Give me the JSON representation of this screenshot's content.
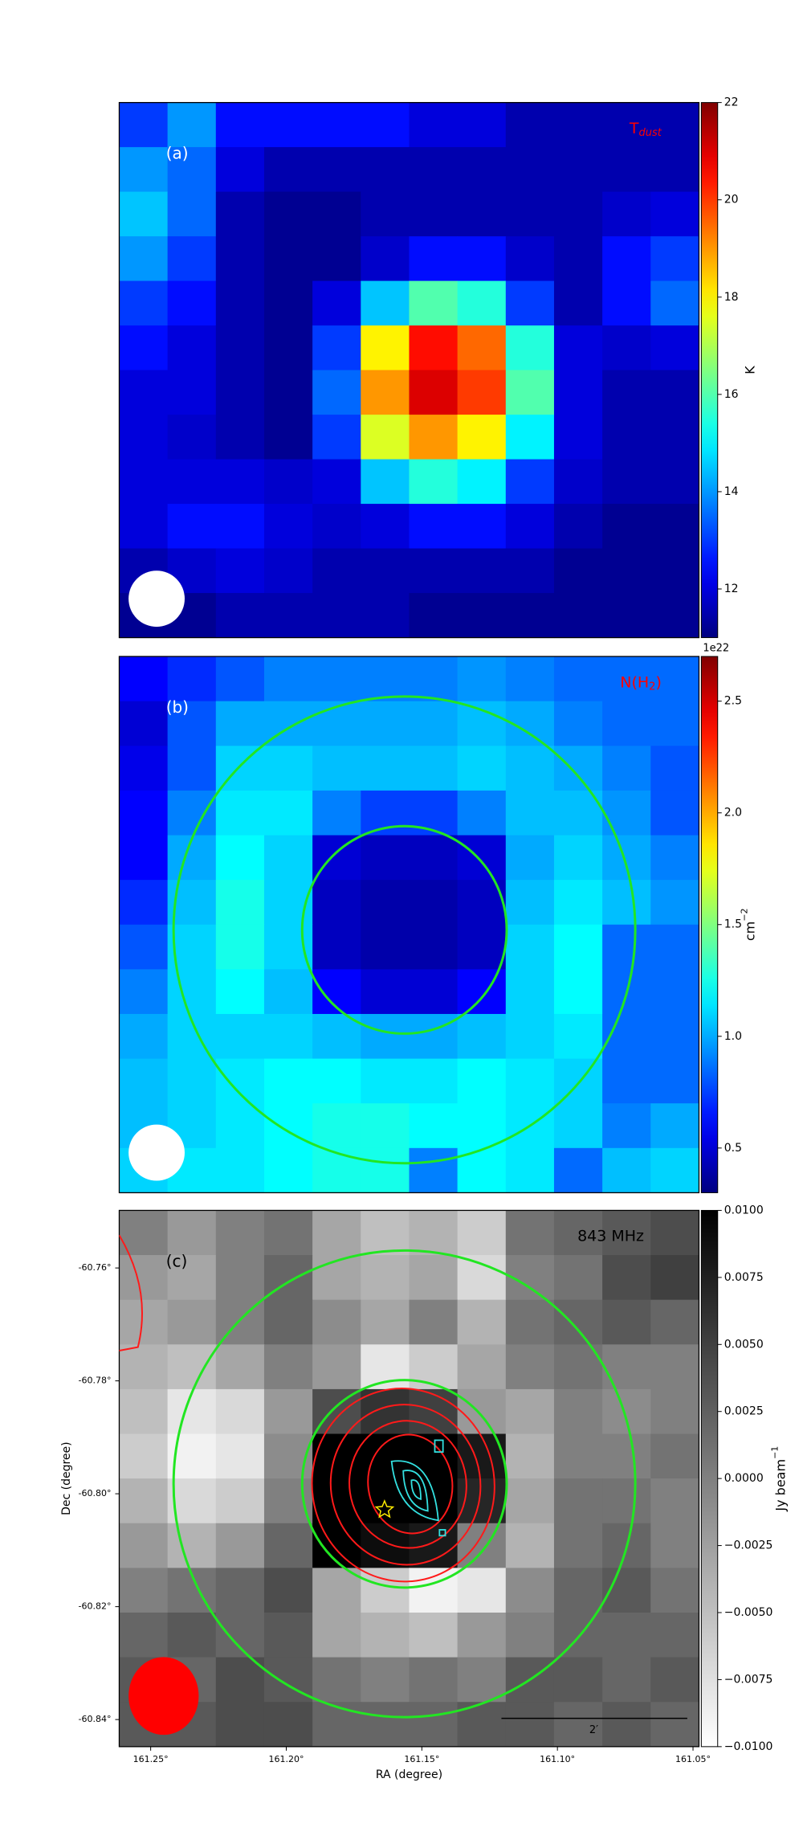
{
  "chart_data": [
    {
      "type": "heatmap",
      "panel_label": "(a)",
      "map_label": "T",
      "map_label_sub": "dust",
      "map_label_color": "#ff0000",
      "colormap": "jet",
      "colorbar_label": "K",
      "zlim": [
        11,
        22
      ],
      "zticks": [
        12,
        14,
        16,
        18,
        20,
        22
      ],
      "z": [
        [
          13,
          14,
          12.5,
          12.5,
          12.5,
          12.5,
          12,
          12,
          11.5,
          11.5,
          11.5,
          11.5
        ],
        [
          14,
          13.5,
          12,
          11.5,
          11.5,
          11.5,
          11.5,
          11.5,
          11.5,
          11.5,
          11.5,
          11.5
        ],
        [
          14.5,
          13.5,
          11.5,
          11.2,
          11.2,
          11.5,
          11.5,
          11.5,
          11.5,
          11.5,
          11.8,
          12
        ],
        [
          14,
          13,
          11.5,
          11.2,
          11.2,
          11.8,
          12.5,
          12.5,
          11.8,
          11.5,
          12.5,
          13
        ],
        [
          13,
          12.5,
          11.5,
          11.2,
          12,
          14.5,
          16,
          15.5,
          13,
          11.5,
          12.5,
          13.5
        ],
        [
          12.5,
          12,
          11.5,
          11.2,
          13,
          18,
          20.5,
          19.5,
          15.5,
          12,
          11.8,
          12
        ],
        [
          12,
          12,
          11.5,
          11.2,
          13.5,
          19,
          21,
          20,
          16,
          12,
          11.5,
          11.5
        ],
        [
          12,
          11.8,
          11.5,
          11.2,
          13,
          17.5,
          19,
          18,
          15,
          12,
          11.5,
          11.5
        ],
        [
          12,
          12,
          12,
          11.8,
          12,
          14.5,
          15.5,
          15,
          13,
          11.8,
          11.5,
          11.5
        ],
        [
          12,
          12.5,
          12.5,
          12,
          11.8,
          12,
          12.5,
          12.5,
          12,
          11.5,
          11.2,
          11.2
        ],
        [
          11.5,
          11.8,
          12,
          11.8,
          11.5,
          11.5,
          11.5,
          11.5,
          11.5,
          11.2,
          11.2,
          11.2
        ],
        [
          11.2,
          11.2,
          11.5,
          11.5,
          11.5,
          11.5,
          11.2,
          11.2,
          11.2,
          11.2,
          11.2,
          11.2
        ]
      ]
    },
    {
      "type": "heatmap",
      "panel_label": "(b)",
      "map_label": "N(H",
      "map_label_sub": "2",
      "map_label_end": ")",
      "map_label_color": "#ff0000",
      "colormap": "jet",
      "colorbar_label": "cm",
      "colorbar_label_sup": "−2",
      "colorbar_offset": "1e22",
      "zlim": [
        0.3,
        2.7
      ],
      "zticks": [
        0.5,
        {
          "value": 1.0,
          "label": "1.0"
        },
        1.5,
        {
          "value": 2.0,
          "label": "2.0"
        },
        2.5
      ],
      "z": [
        [
          0.6,
          0.7,
          0.8,
          0.9,
          0.9,
          0.9,
          0.9,
          0.95,
          0.9,
          0.85,
          0.85,
          0.85
        ],
        [
          0.5,
          0.8,
          1.0,
          1.0,
          1.0,
          1.0,
          1.0,
          1.05,
          1.0,
          0.9,
          0.85,
          0.85
        ],
        [
          0.55,
          0.8,
          1.1,
          1.1,
          1.05,
          1.05,
          1.05,
          1.1,
          1.05,
          1.0,
          0.9,
          0.8
        ],
        [
          0.6,
          0.9,
          1.15,
          1.15,
          0.9,
          0.75,
          0.75,
          0.9,
          1.05,
          1.05,
          0.95,
          0.8
        ],
        [
          0.6,
          1.0,
          1.2,
          1.1,
          0.5,
          0.45,
          0.45,
          0.5,
          1.0,
          1.1,
          1.0,
          0.9
        ],
        [
          0.7,
          1.05,
          1.25,
          1.1,
          0.45,
          0.4,
          0.4,
          0.45,
          1.05,
          1.15,
          1.05,
          0.95
        ],
        [
          0.8,
          1.1,
          1.25,
          1.1,
          0.45,
          0.4,
          0.4,
          0.45,
          1.1,
          1.2,
          0.85,
          0.85
        ],
        [
          0.9,
          1.1,
          1.2,
          1.05,
          0.6,
          0.5,
          0.5,
          0.6,
          1.1,
          1.2,
          0.85,
          0.85
        ],
        [
          1.0,
          1.1,
          1.1,
          1.1,
          1.05,
          1.0,
          1.0,
          1.05,
          1.1,
          1.15,
          0.85,
          0.85
        ],
        [
          1.05,
          1.1,
          1.15,
          1.2,
          1.2,
          1.15,
          1.15,
          1.2,
          1.15,
          1.1,
          0.85,
          0.85
        ],
        [
          1.05,
          1.1,
          1.15,
          1.2,
          1.25,
          1.25,
          1.2,
          1.2,
          1.15,
          1.1,
          0.9,
          1.0
        ],
        [
          1.1,
          1.15,
          1.15,
          1.2,
          1.25,
          1.25,
          0.9,
          1.2,
          1.15,
          0.85,
          1.05,
          1.1
        ]
      ]
    },
    {
      "type": "heatmap",
      "panel_label": "(c)",
      "map_label": "843 MHz",
      "map_label_color": "#000000",
      "colormap": "gray",
      "colorbar_label": "Jy beam",
      "colorbar_label_sup": "−1",
      "zlim": [
        -0.01,
        0.01
      ],
      "zticks": [
        {
          "value": -0.01,
          "label": "−0.0100"
        },
        {
          "value": -0.0075,
          "label": "−0.0075"
        },
        {
          "value": -0.005,
          "label": "−0.0050"
        },
        {
          "value": -0.0025,
          "label": "−0.0025"
        },
        {
          "value": 0,
          "label": "0.0000"
        },
        {
          "value": 0.0025,
          "label": "0.0025"
        },
        {
          "value": 0.005,
          "label": "0.0050"
        },
        {
          "value": 0.0075,
          "label": "0.0075"
        },
        {
          "value": 0.01,
          "label": "0.0100"
        }
      ],
      "xlabel": "RA (degree)",
      "ylabel": "Dec (degree)",
      "xlim": [
        161.2616,
        161.0478
      ],
      "xticks": [
        {
          "value": 161.25,
          "label": "161.25°"
        },
        {
          "value": 161.2,
          "label": "161.20°"
        },
        {
          "value": 161.15,
          "label": "161.15°"
        },
        {
          "value": 161.1,
          "label": "161.10°"
        },
        {
          "value": 161.05,
          "label": "161.05°"
        }
      ],
      "ylim": [
        -60.8448,
        -60.7498
      ],
      "yticks": [
        {
          "value": -60.84,
          "label": "-60.84°"
        },
        {
          "value": -60.82,
          "label": "-60.82°"
        },
        {
          "value": -60.8,
          "label": "-60.80°"
        },
        {
          "value": -60.78,
          "label": "-60.78°"
        },
        {
          "value": -60.76,
          "label": "-60.76°"
        }
      ],
      "scale_bar_label": "2′",
      "z": [
        [
          0.0,
          -0.002,
          0.0,
          0.001,
          -0.003,
          -0.005,
          -0.004,
          -0.006,
          0.001,
          0.002,
          0.003,
          0.004
        ],
        [
          -0.002,
          -0.003,
          0.0,
          0.002,
          -0.003,
          -0.004,
          -0.003,
          -0.007,
          0.0,
          0.001,
          0.004,
          0.005
        ],
        [
          -0.003,
          -0.002,
          0.0,
          0.002,
          -0.001,
          -0.003,
          0.0,
          -0.004,
          0.001,
          0.002,
          0.003,
          0.002
        ],
        [
          -0.004,
          -0.005,
          -0.003,
          0.0,
          -0.002,
          -0.008,
          -0.006,
          -0.003,
          0.0,
          0.001,
          0.0,
          0.0
        ],
        [
          -0.005,
          -0.008,
          -0.007,
          -0.002,
          0.004,
          0.006,
          0.005,
          -0.002,
          -0.003,
          0.0,
          -0.001,
          0.0
        ],
        [
          -0.006,
          -0.009,
          -0.008,
          -0.001,
          0.01,
          0.01,
          0.01,
          0.008,
          -0.004,
          0.0,
          0.0,
          0.001
        ],
        [
          -0.004,
          -0.007,
          -0.006,
          0.0,
          0.01,
          0.01,
          0.01,
          0.007,
          -0.003,
          0.001,
          0.001,
          0.0
        ],
        [
          -0.002,
          -0.004,
          -0.002,
          0.002,
          0.01,
          0.009,
          0.008,
          0.0,
          -0.004,
          0.001,
          0.002,
          0.0
        ],
        [
          0.0,
          0.001,
          0.002,
          0.004,
          -0.003,
          -0.006,
          -0.009,
          -0.008,
          -0.001,
          0.002,
          0.003,
          0.001
        ],
        [
          0.002,
          0.003,
          0.002,
          0.003,
          -0.003,
          -0.004,
          -0.005,
          -0.002,
          0.0,
          0.002,
          0.002,
          0.002
        ],
        [
          0.003,
          0.002,
          0.004,
          0.003,
          0.001,
          0.0,
          0.001,
          0.0,
          0.003,
          0.003,
          0.002,
          0.003
        ],
        [
          0.003,
          0.003,
          0.004,
          0.004,
          0.002,
          0.002,
          0.002,
          0.003,
          0.003,
          0.002,
          0.003,
          0.002
        ]
      ]
    }
  ]
}
